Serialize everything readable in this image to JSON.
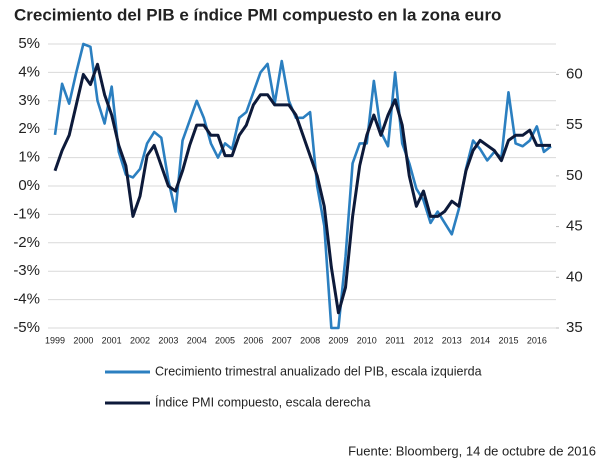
{
  "chart_data": {
    "type": "line",
    "title": "Crecimiento del PIB e índice PMI compuesto en la zona euro",
    "source": "Fuente: Bloomberg, 14 de octubre de 2016",
    "categories": [
      "1999",
      null,
      null,
      null,
      "2000",
      null,
      null,
      null,
      "2001",
      null,
      null,
      null,
      "2002",
      null,
      null,
      null,
      "2003",
      null,
      null,
      null,
      "2004",
      null,
      null,
      null,
      "2005",
      null,
      null,
      null,
      "2006",
      null,
      null,
      null,
      "2007",
      null,
      null,
      null,
      "2008",
      null,
      null,
      null,
      "2009",
      null,
      null,
      null,
      "2010",
      null,
      null,
      null,
      "2011",
      null,
      null,
      null,
      "2012",
      null,
      null,
      null,
      "2013",
      null,
      null,
      null,
      "2014",
      null,
      null,
      null,
      "2015",
      null,
      null,
      null,
      "2016",
      null,
      null
    ],
    "series": [
      {
        "name": "Crecimiento trimestral anualizado del PIB, escala izquierda",
        "color": "#2b7fc0",
        "values": [
          1.8,
          3.6,
          2.9,
          4.0,
          5.0,
          4.9,
          3.0,
          2.2,
          3.5,
          1.2,
          0.4,
          0.3,
          0.6,
          1.5,
          1.9,
          1.7,
          0.2,
          -0.9,
          1.6,
          2.3,
          3.0,
          2.4,
          1.5,
          1.0,
          1.5,
          1.3,
          2.4,
          2.6,
          3.3,
          4.0,
          4.3,
          2.9,
          4.4,
          3.0,
          2.4,
          2.4,
          2.6,
          0.0,
          -1.4,
          -5.0,
          -5.0,
          -2.5,
          0.8,
          1.5,
          1.5,
          3.7,
          1.9,
          1.4,
          4.0,
          1.5,
          0.8,
          -0.1,
          -0.5,
          -1.3,
          -0.9,
          -1.3,
          -1.7,
          -0.8,
          0.6,
          1.6,
          1.3,
          0.9,
          1.2,
          1.0,
          3.3,
          1.5,
          1.4,
          1.6,
          2.1,
          1.2,
          1.4
        ]
      },
      {
        "name": "Índice PMI compuesto, escala derecha",
        "color": "#0d1a3a",
        "axis": "y2",
        "values": [
          50.5,
          52.5,
          54,
          57,
          60,
          59,
          61,
          58,
          56,
          53,
          51,
          46,
          48,
          52,
          53,
          51,
          49,
          48.5,
          50.5,
          53,
          55,
          55,
          54,
          54,
          52,
          52,
          54,
          55,
          57,
          58,
          58,
          57,
          57,
          57,
          56,
          54,
          52,
          50,
          47,
          41,
          36.5,
          39,
          46,
          51,
          54,
          56,
          54,
          56,
          57.5,
          55,
          50,
          47,
          48.5,
          46,
          46,
          46.5,
          47.5,
          47,
          50.5,
          52.5,
          53.5,
          53,
          52.5,
          51.5,
          53.5,
          54,
          54,
          54.5,
          53,
          53,
          53
        ]
      }
    ],
    "ylim": [
      -5,
      5
    ],
    "yticks": [
      {
        "value": -5,
        "label": "-5%"
      },
      {
        "value": -4,
        "label": "-4%"
      },
      {
        "value": -3,
        "label": "-3%"
      },
      {
        "value": -2,
        "label": "-2%"
      },
      {
        "value": -1,
        "label": "-1%"
      },
      {
        "value": 0,
        "label": "0%"
      },
      {
        "value": 1,
        "label": "1%"
      },
      {
        "value": 2,
        "label": "2%"
      },
      {
        "value": 3,
        "label": "3%"
      },
      {
        "value": 4,
        "label": "4%"
      },
      {
        "value": 5,
        "label": "5%"
      }
    ],
    "y2lim": [
      35,
      63
    ],
    "y2ticks": [
      35,
      40,
      45,
      50,
      55,
      60
    ],
    "grid": true
  }
}
